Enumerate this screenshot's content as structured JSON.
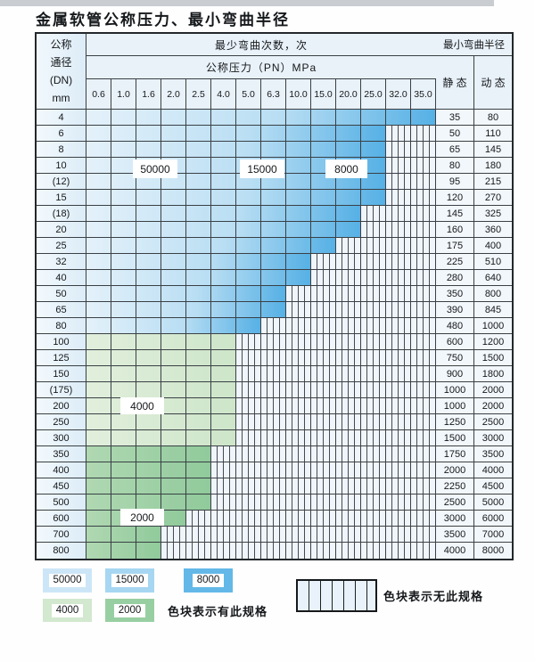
{
  "title": "金属软管公称压力、最小弯曲半径",
  "table": {
    "corner_lines": [
      "公称",
      "通径",
      "(DN)",
      "mm"
    ],
    "cycles_header": "最少弯曲次数，次",
    "pressure_header": "公称压力（PN）MPa",
    "radius_header": "最小弯曲半径",
    "static_header": "静 态",
    "dynamic_header": "动 态",
    "pressure_values": [
      "0.6",
      "1.0",
      "1.6",
      "2.0",
      "2.5",
      "4.0",
      "5.0",
      "6.3",
      "10.0",
      "15.0",
      "20.0",
      "25.0",
      "32.0",
      "35.0"
    ],
    "zone_labels": {
      "b50000": "50000",
      "b15000": "15000",
      "b8000": "8000",
      "g4000": "4000",
      "g2000": "2000"
    },
    "rows": [
      {
        "dn": "4",
        "colored": 14,
        "zone": "blue",
        "static": "35",
        "dynamic": "80"
      },
      {
        "dn": "6",
        "colored": 12,
        "zone": "blue",
        "static": "50",
        "dynamic": "110"
      },
      {
        "dn": "8",
        "colored": 12,
        "zone": "blue",
        "static": "65",
        "dynamic": "145"
      },
      {
        "dn": "10",
        "colored": 12,
        "zone": "blue",
        "static": "80",
        "dynamic": "180"
      },
      {
        "dn": "(12)",
        "colored": 12,
        "zone": "blue",
        "static": "95",
        "dynamic": "215"
      },
      {
        "dn": "15",
        "colored": 12,
        "zone": "blue",
        "static": "120",
        "dynamic": "270"
      },
      {
        "dn": "(18)",
        "colored": 11,
        "zone": "blue",
        "static": "145",
        "dynamic": "325"
      },
      {
        "dn": "20",
        "colored": 11,
        "zone": "blue",
        "static": "160",
        "dynamic": "360"
      },
      {
        "dn": "25",
        "colored": 10,
        "zone": "blue",
        "static": "175",
        "dynamic": "400"
      },
      {
        "dn": "32",
        "colored": 9,
        "zone": "blue",
        "static": "225",
        "dynamic": "510"
      },
      {
        "dn": "40",
        "colored": 9,
        "zone": "blue",
        "static": "280",
        "dynamic": "640"
      },
      {
        "dn": "50",
        "colored": 8,
        "zone": "blue",
        "static": "350",
        "dynamic": "800"
      },
      {
        "dn": "65",
        "colored": 8,
        "zone": "blue",
        "static": "390",
        "dynamic": "845"
      },
      {
        "dn": "80",
        "colored": 7,
        "zone": "blue",
        "static": "480",
        "dynamic": "1000"
      },
      {
        "dn": "100",
        "colored": 6,
        "zone": "green-light",
        "static": "600",
        "dynamic": "1200"
      },
      {
        "dn": "125",
        "colored": 6,
        "zone": "green-light",
        "static": "750",
        "dynamic": "1500"
      },
      {
        "dn": "150",
        "colored": 6,
        "zone": "green-light",
        "static": "900",
        "dynamic": "1800"
      },
      {
        "dn": "(175)",
        "colored": 6,
        "zone": "green-light",
        "static": "1000",
        "dynamic": "2000"
      },
      {
        "dn": "200",
        "colored": 6,
        "zone": "green-light",
        "static": "1000",
        "dynamic": "2000"
      },
      {
        "dn": "250",
        "colored": 6,
        "zone": "green-light",
        "static": "1250",
        "dynamic": "2500"
      },
      {
        "dn": "300",
        "colored": 6,
        "zone": "green-light",
        "static": "1500",
        "dynamic": "3000"
      },
      {
        "dn": "350",
        "colored": 5,
        "zone": "green-dark",
        "static": "1750",
        "dynamic": "3500"
      },
      {
        "dn": "400",
        "colored": 5,
        "zone": "green-dark",
        "static": "2000",
        "dynamic": "4000"
      },
      {
        "dn": "450",
        "colored": 5,
        "zone": "green-dark",
        "static": "2250",
        "dynamic": "4500"
      },
      {
        "dn": "500",
        "colored": 5,
        "zone": "green-dark",
        "static": "2500",
        "dynamic": "5000"
      },
      {
        "dn": "600",
        "colored": 4,
        "zone": "green-dark",
        "static": "3000",
        "dynamic": "6000"
      },
      {
        "dn": "700",
        "colored": 3,
        "zone": "green-dark",
        "static": "3500",
        "dynamic": "7000"
      },
      {
        "dn": "800",
        "colored": 3,
        "zone": "green-dark",
        "static": "4000",
        "dynamic": "8000"
      }
    ]
  },
  "legend": {
    "items": [
      {
        "label": "50000",
        "color": "#cce6f7"
      },
      {
        "label": "15000",
        "color": "#a6d6f1"
      },
      {
        "label": "8000",
        "color": "#63b8e8"
      },
      {
        "label": "4000",
        "color": "#d2e8cf"
      },
      {
        "label": "2000",
        "color": "#98cfa2"
      }
    ],
    "has_spec_text": "色块表示有此规格",
    "no_spec_text": "色块表示无此规格"
  },
  "colors": {
    "blue_max": "#55b0e5",
    "blue_min": "#e4f1fa",
    "green_light": "#d6e9d3",
    "green_dark": "#9bcfa0",
    "grid_line": "#3a4045",
    "hatch_bg": "#eff5fa"
  }
}
